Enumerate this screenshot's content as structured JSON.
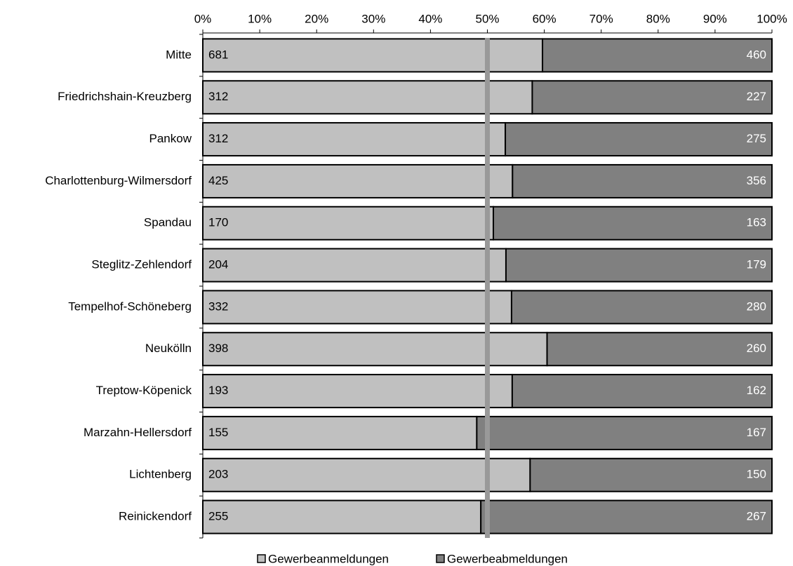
{
  "chart_data": {
    "type": "bar",
    "orientation": "horizontal",
    "stacking": "percent",
    "categories": [
      "Mitte",
      "Friedrichshain-Kreuzberg",
      "Pankow",
      "Charlottenburg-Wilmersdorf",
      "Spandau",
      "Steglitz-Zehlendorf",
      "Tempelhof-Schöneberg",
      "Neukölln",
      "Treptow-Köpenick",
      "Marzahn-Hellersdorf",
      "Lichtenberg",
      "Reinickendorf"
    ],
    "series": [
      {
        "name": "Gewerbeanmeldungen",
        "color": "#c0c0c0",
        "label_color": "#000000",
        "values": [
          681,
          312,
          312,
          425,
          170,
          204,
          332,
          398,
          193,
          155,
          203,
          255
        ]
      },
      {
        "name": "Gewerbeabmeldungen",
        "color": "#808080",
        "label_color": "#ffffff",
        "values": [
          460,
          227,
          275,
          356,
          163,
          179,
          280,
          260,
          162,
          167,
          150,
          267
        ]
      }
    ],
    "xlim": [
      0,
      100
    ],
    "xticks": [
      {
        "value": 0,
        "label": "0%"
      },
      {
        "value": 10,
        "label": "10%"
      },
      {
        "value": 20,
        "label": "20%"
      },
      {
        "value": 30,
        "label": "30%"
      },
      {
        "value": 40,
        "label": "40%"
      },
      {
        "value": 50,
        "label": "50%"
      },
      {
        "value": 60,
        "label": "60%"
      },
      {
        "value": 70,
        "label": "70%"
      },
      {
        "value": 80,
        "label": "80%"
      },
      {
        "value": 90,
        "label": "90%"
      },
      {
        "value": 100,
        "label": "100%"
      }
    ],
    "reference_line": {
      "value": 50,
      "color": "#999999"
    },
    "legend": "bottom"
  }
}
